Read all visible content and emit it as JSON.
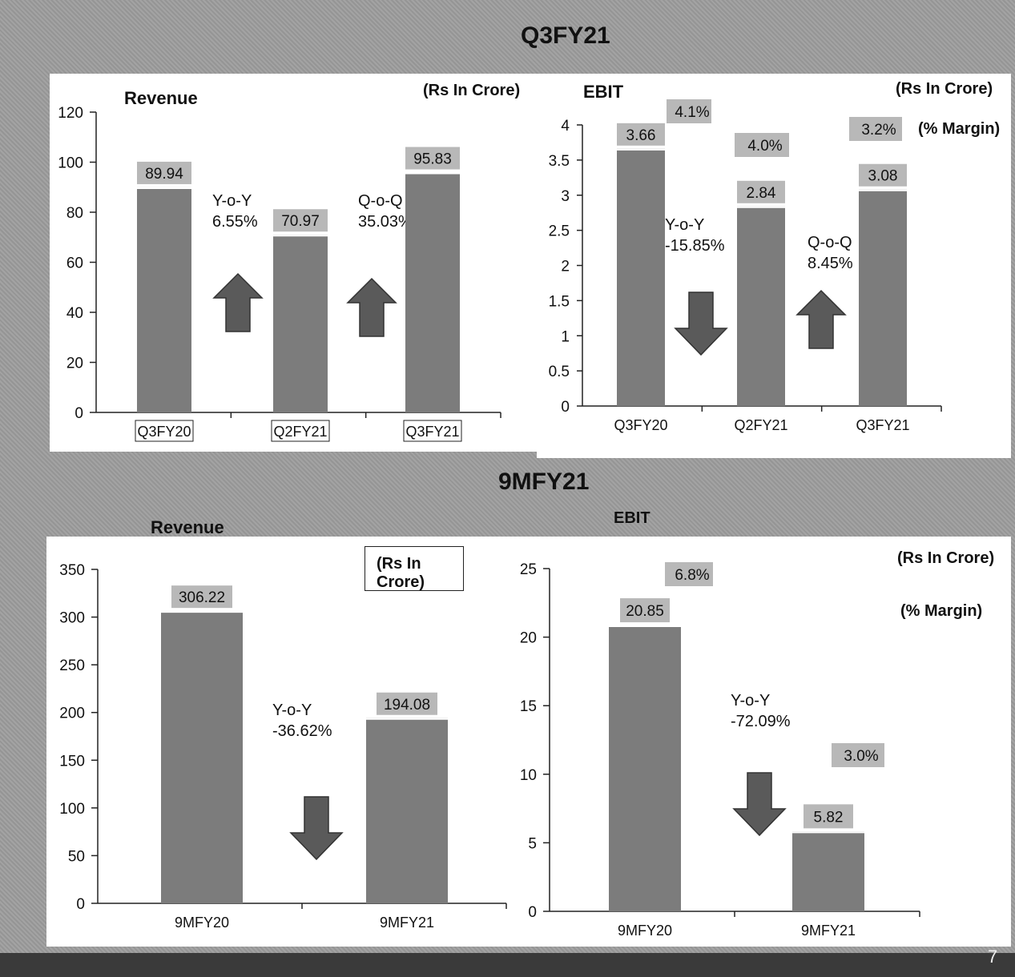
{
  "section_titles": {
    "top": "Q3FY21",
    "bottom": "9MFY21"
  },
  "page_number": "7",
  "chart_data": [
    {
      "id": "q3-revenue",
      "type": "bar",
      "title": "Revenue",
      "unit": "(Rs In Crore)",
      "categories": [
        "Q3FY20",
        "Q2FY21",
        "Q3FY21"
      ],
      "values": [
        89.94,
        70.97,
        95.83
      ],
      "value_labels": [
        "89.94",
        "70.97",
        "95.83"
      ],
      "ylim": [
        0,
        120
      ],
      "yticks": [
        "0",
        "20",
        "40",
        "60",
        "80",
        "100",
        "120"
      ],
      "annotations": [
        {
          "label": "Y-o-Y",
          "value": "6.55%",
          "direction": "up"
        },
        {
          "label": "Q-o-Q",
          "value": "35.03%",
          "direction": "up"
        }
      ],
      "bar_color": "#7d7d7d",
      "label_box_color": "#b9b9b9"
    },
    {
      "id": "q3-ebit",
      "type": "bar",
      "title": "EBIT",
      "unit": "(Rs In Crore)",
      "margin_title": "(% Margin)",
      "categories": [
        "Q3FY20",
        "Q2FY21",
        "Q3FY21"
      ],
      "values": [
        3.66,
        2.84,
        3.08
      ],
      "value_labels": [
        "3.66",
        "2.84",
        "3.08"
      ],
      "margins": [
        "4.1%",
        "4.0%",
        "3.2%"
      ],
      "ylim": [
        0,
        4
      ],
      "yticks": [
        "0",
        "0.5",
        "1",
        "1.5",
        "2",
        "2.5",
        "3",
        "3.5",
        "4"
      ],
      "annotations": [
        {
          "label": "Y-o-Y",
          "value": "-15.85%",
          "direction": "down"
        },
        {
          "label": "Q-o-Q",
          "value": "8.45%",
          "direction": "up"
        }
      ]
    },
    {
      "id": "9m-revenue",
      "type": "bar",
      "title": "Revenue",
      "unit": "(Rs In Crore)",
      "categories": [
        "9MFY20",
        "9MFY21"
      ],
      "values": [
        306.22,
        194.08
      ],
      "value_labels": [
        "306.22",
        "194.08"
      ],
      "ylim": [
        0,
        350
      ],
      "yticks": [
        "0",
        "50",
        "100",
        "150",
        "200",
        "250",
        "300",
        "350"
      ],
      "annotations": [
        {
          "label": "Y-o-Y",
          "value": "-36.62%",
          "direction": "down"
        }
      ]
    },
    {
      "id": "9m-ebit",
      "type": "bar",
      "title": "EBIT",
      "unit": "(Rs In Crore)",
      "margin_title": "(% Margin)",
      "categories": [
        "9MFY20",
        "9MFY21"
      ],
      "values": [
        20.85,
        5.82
      ],
      "value_labels": [
        "20.85",
        "5.82"
      ],
      "margins": [
        "6.8%",
        "3.0%"
      ],
      "ylim": [
        0,
        25
      ],
      "yticks": [
        "0",
        "5",
        "10",
        "15",
        "20",
        "25"
      ],
      "annotations": [
        {
          "label": "Y-o-Y",
          "value": "-72.09%",
          "direction": "down"
        }
      ]
    }
  ]
}
